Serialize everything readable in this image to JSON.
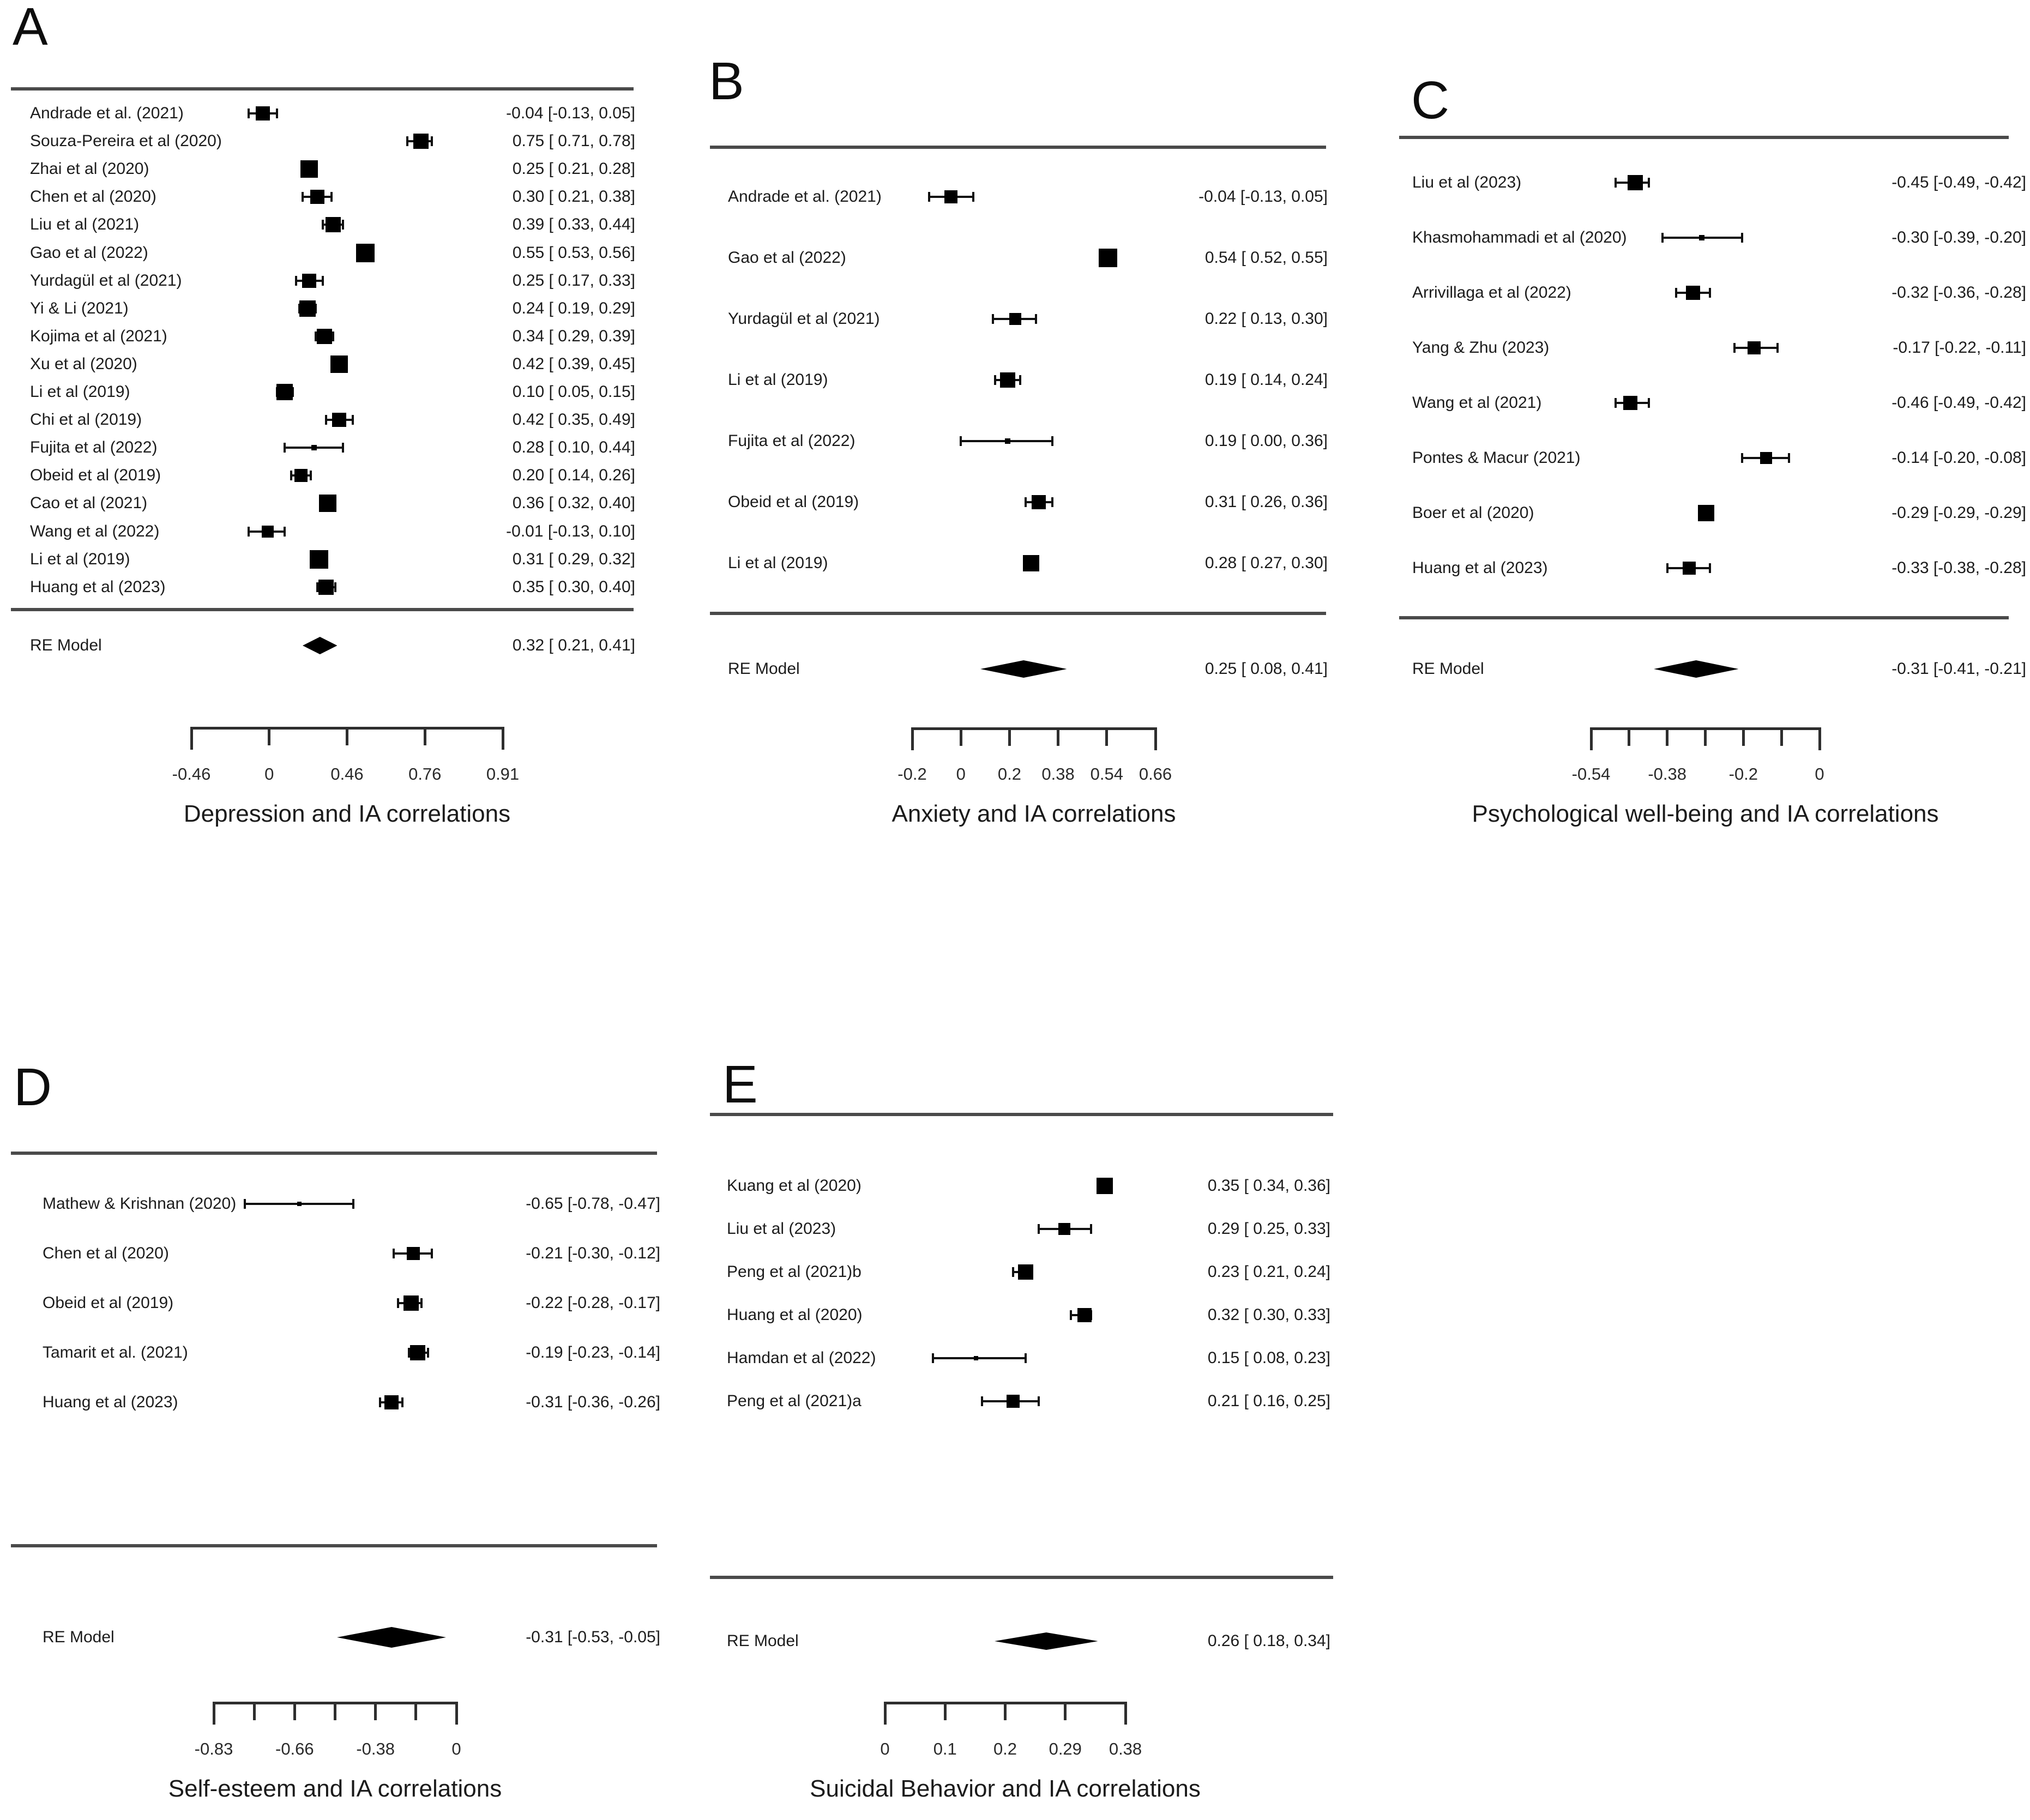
{
  "figure": {
    "background": "#ffffff",
    "ink_color": "#000000",
    "rule_color": "#4a4a4a"
  },
  "chart_data": [
    {
      "type": "forest",
      "panel": "A",
      "xlabel": "Depression and IA correlations",
      "axis": {
        "scale": "fisher-z",
        "zmin": -0.5,
        "zmax": 1.5,
        "ticks": [
          {
            "z": -0.5,
            "label": "-0.46"
          },
          {
            "z": 0,
            "label": "0"
          },
          {
            "z": 0.5,
            "label": "0.46"
          },
          {
            "z": 1.0,
            "label": "0.76"
          },
          {
            "z": 1.5,
            "label": "0.91"
          }
        ]
      },
      "studies": [
        {
          "label": "Andrade et al. (2021)",
          "est": -0.04,
          "lo": -0.13,
          "hi": 0.05,
          "text": "-0.04 [-0.13, 0.05]",
          "size": 26
        },
        {
          "label": "Souza-Pereira et al (2020)",
          "est": 0.75,
          "lo": 0.71,
          "hi": 0.78,
          "text": "0.75 [ 0.71, 0.78]",
          "size": 28
        },
        {
          "label": "Zhai et al (2020)",
          "est": 0.25,
          "lo": 0.21,
          "hi": 0.28,
          "text": "0.25 [ 0.21, 0.28]",
          "size": 32
        },
        {
          "label": "Chen et al (2020)",
          "est": 0.3,
          "lo": 0.21,
          "hi": 0.38,
          "text": "0.30 [ 0.21, 0.38]",
          "size": 26
        },
        {
          "label": "Liu et al (2021)",
          "est": 0.39,
          "lo": 0.33,
          "hi": 0.44,
          "text": "0.39 [ 0.33, 0.44]",
          "size": 28
        },
        {
          "label": "Gao et al (2022)",
          "est": 0.55,
          "lo": 0.53,
          "hi": 0.56,
          "text": "0.55 [ 0.53, 0.56]",
          "size": 34
        },
        {
          "label": "Yurdagül et al (2021)",
          "est": 0.25,
          "lo": 0.17,
          "hi": 0.33,
          "text": "0.25 [ 0.17, 0.33]",
          "size": 26
        },
        {
          "label": "Yi & Li (2021)",
          "est": 0.24,
          "lo": 0.19,
          "hi": 0.29,
          "text": "0.24 [ 0.19, 0.29]",
          "size": 30
        },
        {
          "label": "Kojima et al (2021)",
          "est": 0.34,
          "lo": 0.29,
          "hi": 0.39,
          "text": "0.34 [ 0.29, 0.39]",
          "size": 28
        },
        {
          "label": "Xu et al (2020)",
          "est": 0.42,
          "lo": 0.39,
          "hi": 0.45,
          "text": "0.42 [ 0.39, 0.45]",
          "size": 32
        },
        {
          "label": "Li et al (2019)",
          "est": 0.1,
          "lo": 0.05,
          "hi": 0.15,
          "text": "0.10 [ 0.05, 0.15]",
          "size": 30
        },
        {
          "label": "Chi et al (2019)",
          "est": 0.42,
          "lo": 0.35,
          "hi": 0.49,
          "text": "0.42 [ 0.35, 0.49]",
          "size": 26
        },
        {
          "label": "Fujita et al (2022)",
          "est": 0.28,
          "lo": 0.1,
          "hi": 0.44,
          "text": "0.28 [ 0.10, 0.44]",
          "size": 10
        },
        {
          "label": "Obeid et al (2019)",
          "est": 0.2,
          "lo": 0.14,
          "hi": 0.26,
          "text": "0.20 [ 0.14, 0.26]",
          "size": 24
        },
        {
          "label": "Cao et al (2021)",
          "est": 0.36,
          "lo": 0.32,
          "hi": 0.4,
          "text": "0.36 [ 0.32, 0.40]",
          "size": 32
        },
        {
          "label": "Wang et al (2022)",
          "est": -0.01,
          "lo": -0.13,
          "hi": 0.1,
          "text": "-0.01 [-0.13, 0.10]",
          "size": 22
        },
        {
          "label": "Li et al (2019)",
          "est": 0.31,
          "lo": 0.29,
          "hi": 0.32,
          "text": "0.31 [ 0.29, 0.32]",
          "size": 34
        },
        {
          "label": "Huang et al (2023)",
          "est": 0.35,
          "lo": 0.3,
          "hi": 0.4,
          "text": "0.35 [ 0.30, 0.40]",
          "size": 28
        }
      ],
      "summary": {
        "label": "RE Model",
        "est": 0.32,
        "lo": 0.21,
        "hi": 0.41,
        "text": "0.32 [ 0.21, 0.41]"
      }
    },
    {
      "type": "forest",
      "panel": "B",
      "xlabel": "Anxiety and IA correlations",
      "axis": {
        "scale": "fisher-z",
        "zmin": -0.2,
        "zmax": 0.8,
        "ticks": [
          {
            "z": -0.2,
            "label": "-0.2"
          },
          {
            "z": 0,
            "label": "0"
          },
          {
            "z": 0.2,
            "label": "0.2"
          },
          {
            "z": 0.4,
            "label": "0.38"
          },
          {
            "z": 0.6,
            "label": "0.54"
          },
          {
            "z": 0.8,
            "label": "0.66"
          }
        ]
      },
      "studies": [
        {
          "label": "Andrade et al. (2021)",
          "est": -0.04,
          "lo": -0.13,
          "hi": 0.05,
          "text": "-0.04 [-0.13, 0.05]",
          "size": 24
        },
        {
          "label": "Gao et al (2022)",
          "est": 0.54,
          "lo": 0.52,
          "hi": 0.55,
          "text": "0.54 [ 0.52, 0.55]",
          "size": 34
        },
        {
          "label": "Yurdagül et al (2021)",
          "est": 0.22,
          "lo": 0.13,
          "hi": 0.3,
          "text": "0.22 [ 0.13, 0.30]",
          "size": 22
        },
        {
          "label": "Li et al (2019)",
          "est": 0.19,
          "lo": 0.14,
          "hi": 0.24,
          "text": "0.19 [ 0.14, 0.24]",
          "size": 28
        },
        {
          "label": "Fujita et al (2022)",
          "est": 0.19,
          "lo": 0.0,
          "hi": 0.36,
          "text": "0.19 [ 0.00, 0.36]",
          "size": 10
        },
        {
          "label": "Obeid et al (2019)",
          "est": 0.31,
          "lo": 0.26,
          "hi": 0.36,
          "text": "0.31 [ 0.26, 0.36]",
          "size": 26
        },
        {
          "label": "Li et al (2019)",
          "est": 0.28,
          "lo": 0.27,
          "hi": 0.3,
          "text": "0.28 [ 0.27, 0.30]",
          "size": 30
        }
      ],
      "summary": {
        "label": "RE Model",
        "est": 0.25,
        "lo": 0.08,
        "hi": 0.41,
        "text": "0.25 [ 0.08, 0.41]"
      }
    },
    {
      "type": "forest",
      "panel": "C",
      "xlabel": "Psychological well-being and IA correlations",
      "axis": {
        "scale": "fisher-z",
        "zmin": -0.6,
        "zmax": 0,
        "ticks": [
          {
            "z": -0.6,
            "label": "-0.54"
          },
          {
            "z": -0.5,
            "label": ""
          },
          {
            "z": -0.4,
            "label": "-0.38"
          },
          {
            "z": -0.3,
            "label": ""
          },
          {
            "z": -0.2,
            "label": "-0.2"
          },
          {
            "z": -0.1,
            "label": ""
          },
          {
            "z": 0,
            "label": "0"
          }
        ]
      },
      "studies": [
        {
          "label": "Liu et al (2023)",
          "est": -0.45,
          "lo": -0.49,
          "hi": -0.42,
          "text": "-0.45 [-0.49, -0.42]",
          "size": 28
        },
        {
          "label": "Khasmohammadi et al (2020)",
          "est": -0.3,
          "lo": -0.39,
          "hi": -0.2,
          "text": "-0.30 [-0.39, -0.20]",
          "size": 10
        },
        {
          "label": "Arrivillaga et al (2022)",
          "est": -0.32,
          "lo": -0.36,
          "hi": -0.28,
          "text": "-0.32 [-0.36, -0.28]",
          "size": 26
        },
        {
          "label": "Yang & Zhu (2023)",
          "est": -0.17,
          "lo": -0.22,
          "hi": -0.11,
          "text": "-0.17 [-0.22, -0.11]",
          "size": 24
        },
        {
          "label": "Wang et al (2021)",
          "est": -0.46,
          "lo": -0.49,
          "hi": -0.42,
          "text": "-0.46 [-0.49, -0.42]",
          "size": 26
        },
        {
          "label": "Pontes & Macur (2021)",
          "est": -0.14,
          "lo": -0.2,
          "hi": -0.08,
          "text": "-0.14 [-0.20, -0.08]",
          "size": 22
        },
        {
          "label": "Boer et al (2020)",
          "est": -0.29,
          "lo": -0.29,
          "hi": -0.29,
          "text": "-0.29 [-0.29, -0.29]",
          "size": 30
        },
        {
          "label": "Huang et al (2023)",
          "est": -0.33,
          "lo": -0.38,
          "hi": -0.28,
          "text": "-0.33 [-0.38, -0.28]",
          "size": 24
        }
      ],
      "summary": {
        "label": "RE Model",
        "est": -0.31,
        "lo": -0.41,
        "hi": -0.21,
        "text": "-0.31 [-0.41, -0.21]"
      }
    },
    {
      "type": "forest",
      "panel": "D",
      "xlabel": "Self-esteem and IA correlations",
      "axis": {
        "scale": "fisher-z",
        "zmin": -1.2,
        "zmax": 0,
        "ticks": [
          {
            "z": -1.2,
            "label": "-0.83"
          },
          {
            "z": -1.0,
            "label": ""
          },
          {
            "z": -0.8,
            "label": "-0.66"
          },
          {
            "z": -0.6,
            "label": ""
          },
          {
            "z": -0.4,
            "label": "-0.38"
          },
          {
            "z": -0.2,
            "label": ""
          },
          {
            "z": 0,
            "label": "0"
          }
        ]
      },
      "studies": [
        {
          "label": "Mathew & Krishnan (2020)",
          "est": -0.65,
          "lo": -0.78,
          "hi": -0.47,
          "text": "-0.65 [-0.78, -0.47]",
          "size": 8
        },
        {
          "label": "Chen et al (2020)",
          "est": -0.21,
          "lo": -0.3,
          "hi": -0.12,
          "text": "-0.21 [-0.30, -0.12]",
          "size": 24
        },
        {
          "label": "Obeid et al (2019)",
          "est": -0.22,
          "lo": -0.28,
          "hi": -0.17,
          "text": "-0.22 [-0.28, -0.17]",
          "size": 28
        },
        {
          "label": "Tamarit et al. (2021)",
          "est": -0.19,
          "lo": -0.23,
          "hi": -0.14,
          "text": "-0.19 [-0.23, -0.14]",
          "size": 28
        },
        {
          "label": "Huang et al (2023)",
          "est": -0.31,
          "lo": -0.36,
          "hi": -0.26,
          "text": "-0.31 [-0.36, -0.26]",
          "size": 26
        }
      ],
      "summary": {
        "label": "RE Model",
        "est": -0.31,
        "lo": -0.53,
        "hi": -0.05,
        "text": "-0.31 [-0.53, -0.05]"
      }
    },
    {
      "type": "forest",
      "panel": "E",
      "xlabel": "Suicidal Behavior and IA correlations",
      "axis": {
        "scale": "fisher-z",
        "zmin": 0,
        "zmax": 0.4,
        "ticks": [
          {
            "z": 0,
            "label": "0"
          },
          {
            "z": 0.1,
            "label": "0.1"
          },
          {
            "z": 0.2,
            "label": "0.2"
          },
          {
            "z": 0.3,
            "label": "0.29"
          },
          {
            "z": 0.4,
            "label": "0.38"
          }
        ]
      },
      "studies": [
        {
          "label": "Kuang et al (2020)",
          "est": 0.35,
          "lo": 0.34,
          "hi": 0.36,
          "text": "0.35 [ 0.34, 0.36]",
          "size": 30
        },
        {
          "label": "Liu et al (2023)",
          "est": 0.29,
          "lo": 0.25,
          "hi": 0.33,
          "text": "0.29 [ 0.25, 0.33]",
          "size": 22
        },
        {
          "label": "Peng et al (2021)b",
          "est": 0.23,
          "lo": 0.21,
          "hi": 0.24,
          "text": "0.23 [ 0.21, 0.24]",
          "size": 28
        },
        {
          "label": "Huang et al (2020)",
          "est": 0.32,
          "lo": 0.3,
          "hi": 0.33,
          "text": "0.32 [ 0.30, 0.33]",
          "size": 26
        },
        {
          "label": "Hamdan et al (2022)",
          "est": 0.15,
          "lo": 0.08,
          "hi": 0.23,
          "text": "0.15 [ 0.08, 0.23]",
          "size": 8
        },
        {
          "label": "Peng et al (2021)a",
          "est": 0.21,
          "lo": 0.16,
          "hi": 0.25,
          "text": "0.21 [ 0.16, 0.25]",
          "size": 24
        }
      ],
      "summary": {
        "label": "RE Model",
        "est": 0.26,
        "lo": 0.18,
        "hi": 0.34,
        "text": "0.26 [ 0.18, 0.34]"
      }
    }
  ]
}
